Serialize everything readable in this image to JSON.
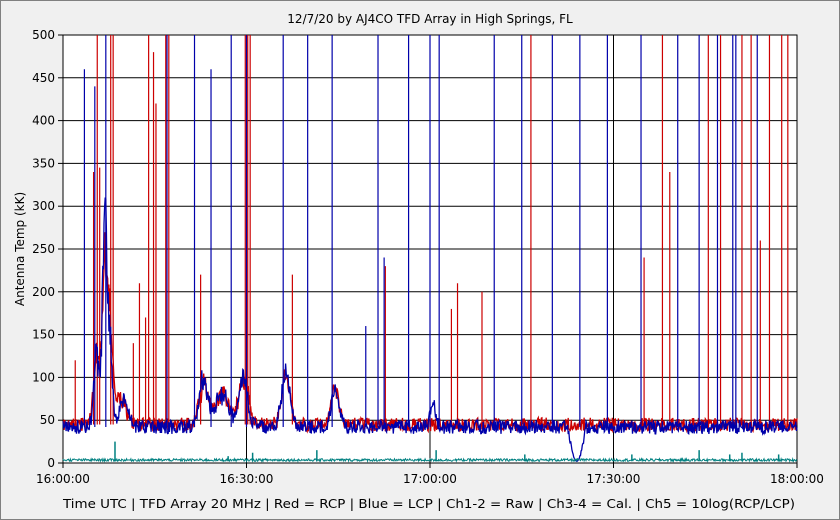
{
  "chart_data": {
    "type": "line",
    "title": "12/7/20  by  AJ4CO TFD Array  in  High Springs, FL",
    "xlabel": "Time UTC | TFD Array 20 MHz | Red = RCP | Blue = LCP | Ch1-2 = Raw | Ch3-4 = Cal. | Ch5 = 10log(RCP/LCP)",
    "ylabel": "Antenna Temp (kK)",
    "ylim": [
      0,
      500
    ],
    "xlim_minutes": [
      0,
      120
    ],
    "x_tick_labels": [
      "16:00:00",
      "16:30:00",
      "17:00:00",
      "17:30:00",
      "18:00:00"
    ],
    "y_tick_labels": [
      "0",
      "50",
      "100",
      "150",
      "200",
      "250",
      "300",
      "350",
      "400",
      "450",
      "500"
    ],
    "grid": true,
    "series": [
      {
        "name": "RCP",
        "color": "#cc0000",
        "baseline": 45,
        "bumps": [
          [
            5.5,
            80,
            0.7
          ],
          [
            6.8,
            150,
            0.6
          ],
          [
            7.6,
            120,
            0.7
          ],
          [
            9.5,
            30,
            1.2
          ],
          [
            23,
            45,
            1.0
          ],
          [
            26,
            35,
            1.5
          ],
          [
            29.5,
            55,
            1.1
          ],
          [
            36.5,
            55,
            1.0
          ],
          [
            44.5,
            40,
            0.9
          ]
        ],
        "spikes": [
          [
            2,
            120
          ],
          [
            5,
            340
          ],
          [
            5.6,
            500
          ],
          [
            6,
            345
          ],
          [
            7.8,
            500
          ],
          [
            8.2,
            500
          ],
          [
            11.5,
            140
          ],
          [
            12.5,
            210
          ],
          [
            13.5,
            170
          ],
          [
            14,
            500
          ],
          [
            14.8,
            480
          ],
          [
            15.2,
            420
          ],
          [
            16.8,
            500
          ],
          [
            17.3,
            500
          ],
          [
            22.5,
            220
          ],
          [
            29.8,
            500
          ],
          [
            30.2,
            500
          ],
          [
            30.6,
            500
          ],
          [
            37.5,
            220
          ],
          [
            52.7,
            230
          ],
          [
            63.5,
            180
          ],
          [
            64.5,
            210
          ],
          [
            68.5,
            200
          ],
          [
            76.5,
            500
          ],
          [
            95,
            240
          ],
          [
            98,
            500
          ],
          [
            99.2,
            340
          ],
          [
            105.5,
            500
          ],
          [
            107.5,
            500
          ],
          [
            111,
            500
          ],
          [
            112.5,
            500
          ],
          [
            114,
            260
          ],
          [
            115.5,
            500
          ],
          [
            117.5,
            500
          ],
          [
            118.5,
            500
          ]
        ]
      },
      {
        "name": "LCP",
        "color": "#0000aa",
        "baseline": 42,
        "bumps": [
          [
            5.5,
            90,
            0.6
          ],
          [
            6.8,
            230,
            0.5
          ],
          [
            7.6,
            110,
            0.6
          ],
          [
            10,
            30,
            1.0
          ],
          [
            23,
            55,
            1.0
          ],
          [
            26,
            40,
            1.5
          ],
          [
            29.5,
            60,
            1.0
          ],
          [
            36.5,
            65,
            1.0
          ],
          [
            44.5,
            40,
            0.9
          ],
          [
            60.5,
            30,
            0.6
          ]
        ],
        "spikes": [
          [
            3.5,
            460
          ],
          [
            5.2,
            440
          ],
          [
            7,
            500
          ],
          [
            17,
            500
          ],
          [
            21.5,
            500
          ],
          [
            24.2,
            460
          ],
          [
            27.5,
            500
          ],
          [
            30,
            500
          ],
          [
            36,
            500
          ],
          [
            40,
            500
          ],
          [
            44,
            500
          ],
          [
            49.5,
            160
          ],
          [
            51.5,
            500
          ],
          [
            52.5,
            240
          ],
          [
            56.5,
            500
          ],
          [
            60,
            500
          ],
          [
            61.5,
            500
          ],
          [
            70.5,
            500
          ],
          [
            75,
            500
          ],
          [
            80,
            500
          ],
          [
            84.5,
            500
          ],
          [
            89,
            500
          ],
          [
            94.5,
            500
          ],
          [
            100.5,
            500
          ],
          [
            104,
            500
          ],
          [
            107,
            500
          ],
          [
            109.5,
            500
          ],
          [
            110,
            500
          ],
          [
            113.5,
            500
          ]
        ],
        "dip": {
          "start": 82.5,
          "end": 85.5,
          "bottom": 2
        }
      },
      {
        "name": "Ch5",
        "color": "#008080",
        "baseline": 2,
        "spikes": [
          [
            8.5,
            25
          ],
          [
            27,
            8
          ],
          [
            31,
            12
          ],
          [
            41.5,
            15
          ],
          [
            61,
            15
          ],
          [
            75.5,
            10
          ],
          [
            93,
            10
          ],
          [
            104,
            15
          ],
          [
            109,
            10
          ],
          [
            111,
            12
          ],
          [
            117,
            10
          ]
        ]
      }
    ]
  }
}
